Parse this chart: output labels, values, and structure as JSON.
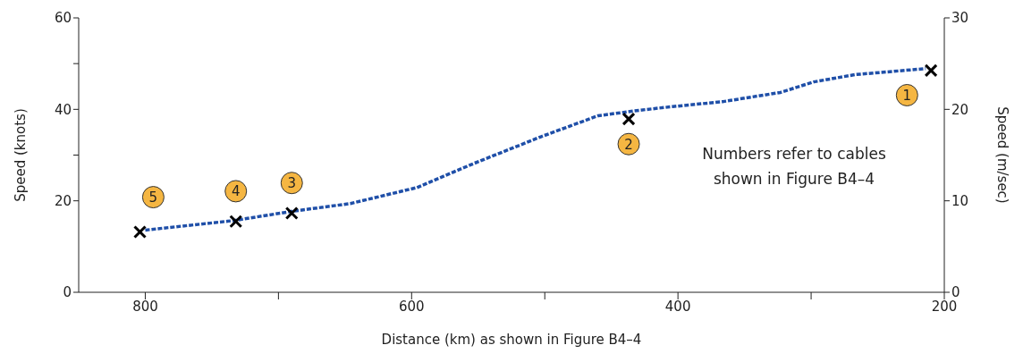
{
  "chart_data": {
    "type": "line",
    "xlabel": "Distance (km) as shown in Figure B4–4",
    "ylabel": "Speed (knots)",
    "y2label": "Speed (m/sec)",
    "xlim": [
      850,
      200
    ],
    "xticks": [
      800,
      {
        "value": 700,
        "label": null
      },
      600,
      {
        "value": 500,
        "label": null
      },
      400,
      {
        "value": 300,
        "label": null
      },
      200
    ],
    "ylim": [
      0,
      60
    ],
    "yticks": [
      0,
      20,
      {
        "value": 30,
        "label": null
      },
      40,
      {
        "value": 50,
        "label": null
      },
      60
    ],
    "y2lim": [
      0,
      30
    ],
    "y2ticks": [
      0,
      10,
      20,
      30
    ],
    "grid": false,
    "legend": false,
    "series": [
      {
        "type": "line",
        "color": "#1f4fa8",
        "line_style": "dashed",
        "marker": "none",
        "x": [
          800,
          733,
          690,
          646,
          596,
          553,
          503,
          460,
          429,
          404,
          366,
          323,
          298,
          267,
          214
        ],
        "values": [
          13.6,
          15.7,
          17.7,
          19.4,
          22.9,
          28.2,
          34,
          38.6,
          39.8,
          40.6,
          41.7,
          43.7,
          46,
          47.6,
          48.9
        ]
      },
      {
        "type": "scatter",
        "color": "#000000",
        "marker": "cross",
        "x": [
          804,
          732,
          690,
          437,
          210
        ],
        "values": [
          13.2,
          15.5,
          17.3,
          37.9,
          48.5
        ]
      }
    ],
    "annotations": [
      {
        "text": "5",
        "x": 794,
        "y": 20.8
      },
      {
        "text": "4",
        "x": 732,
        "y": 22.1
      },
      {
        "text": "3",
        "x": 690,
        "y": 23.9
      },
      {
        "text": "2",
        "x": 437,
        "y": 32.4
      },
      {
        "text": "1",
        "x": 228,
        "y": 43.1
      },
      "Numbers refer to cables shown in Figure B4–4"
    ]
  }
}
